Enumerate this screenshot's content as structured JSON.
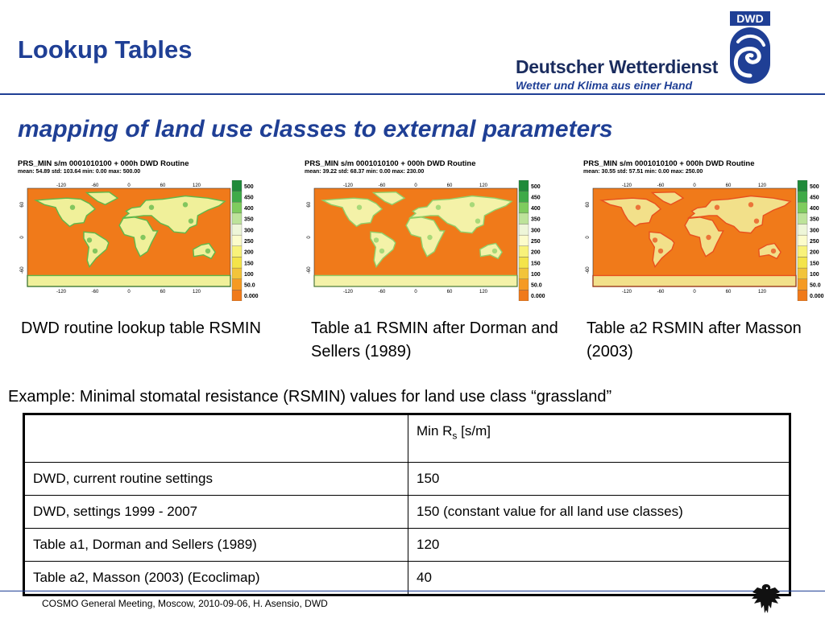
{
  "header": {
    "title": "Lookup Tables",
    "brand_name": "Deutscher Wetterdienst",
    "brand_tagline": "Wetter und Klima aus einer Hand",
    "logo_text": "DWD"
  },
  "subtitle": "mapping of land use classes to external parameters",
  "maps": [
    {
      "title": "PRS_MIN s/m  0001010100 +  000h DWD Routine",
      "stats": "mean:  54.89  std:  103.64   min:   0.00   max:  500.00",
      "caption": "DWD routine lookup table RSMIN",
      "land_color": "#f0f09a",
      "land_accent": "#5fb84a"
    },
    {
      "title": "PRS_MIN s/m  0001010100 +  000h DWD Routine",
      "stats": "mean:  39.22  std:  68.37   min:   0.00   max:  230.00",
      "caption": "Table a1 RSMIN after Dorman and Sellers (1989)",
      "land_color": "#f4f2a8",
      "land_accent": "#8fd06a"
    },
    {
      "title": "PRS_MIN s/m  0001010100 +  000h DWD Routine",
      "stats": "mean:  30.55  std:  57.51   min:   0.00   max:  250.00",
      "caption": "Table a2 RSMIN after Masson (2003)",
      "land_color": "#f2e08a",
      "land_accent": "#e8501e"
    }
  ],
  "axes": {
    "lon_ticks": [
      "-120",
      "-60",
      "0",
      "60",
      "120"
    ],
    "lat_ticks": [
      "60",
      "0",
      "-60"
    ]
  },
  "colorbar": {
    "labels": [
      "500",
      "450",
      "400",
      "350",
      "300",
      "250",
      "200",
      "150",
      "100",
      "50.0",
      "0.000"
    ],
    "colors": [
      "#1f8a3a",
      "#3faa48",
      "#7fcc5e",
      "#bde39a",
      "#eef6d8",
      "#fcfccb",
      "#f8f27a",
      "#f4e44a",
      "#f2c43a",
      "#f59a22",
      "#f07a1a"
    ]
  },
  "example": "Example: Minimal stomatal resistance (RSMIN) values for land use class “grassland”",
  "table": {
    "header_main": "Min R",
    "header_sub": "s",
    "header_unit": " [s/m]",
    "rows": [
      {
        "label": "DWD, current routine settings",
        "value": "150"
      },
      {
        "label": "DWD, settings 1999 - 2007",
        "value": "150 (constant value for all land use classes)"
      },
      {
        "label": "Table a1, Dorman and Sellers (1989)",
        "value": "120"
      },
      {
        "label": "Table a2, Masson (2003) (Ecoclimap)",
        "value": "40"
      }
    ]
  },
  "footer": "COSMO General Meeting, Moscow, 2010-09-06, H. Asensio, DWD",
  "colors": {
    "title": "#1f3f95",
    "ocean": "#f07a1a"
  }
}
